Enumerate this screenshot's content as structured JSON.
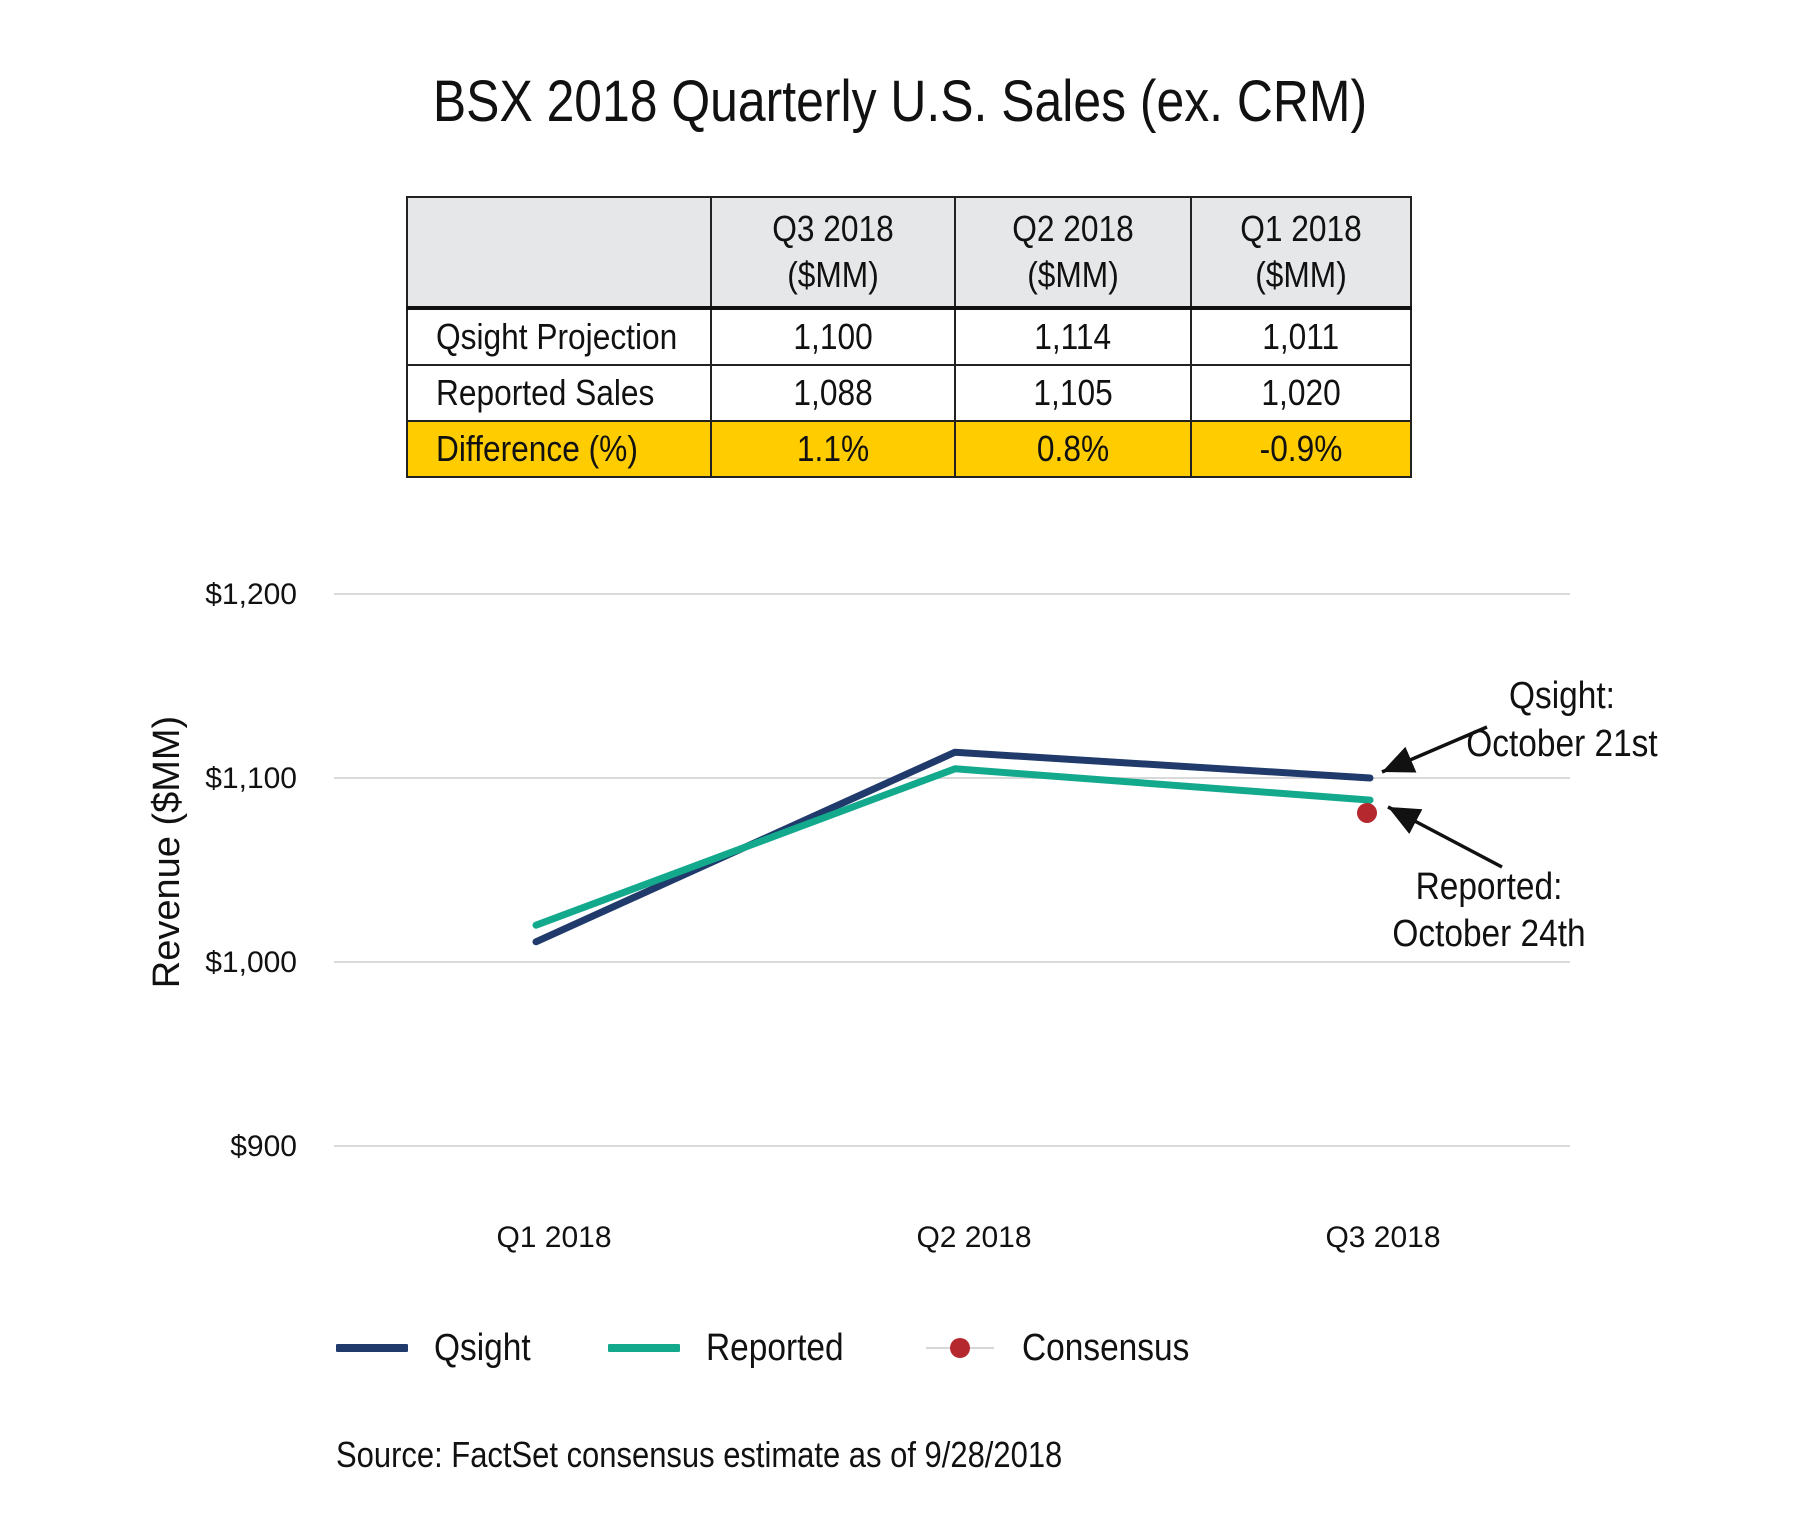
{
  "title": "BSX 2018 Quarterly U.S. Sales (ex. CRM)",
  "table": {
    "header": [
      "",
      "Q3 2018",
      "Q2 2018",
      "Q1 2018"
    ],
    "header_sub": [
      "",
      "($MM)",
      "($MM)",
      "($MM)"
    ],
    "rows": [
      {
        "label": "Qsight Projection",
        "values": [
          "1,100",
          "1,114",
          "1,011"
        ],
        "highlight": false
      },
      {
        "label": "Reported Sales",
        "values": [
          "1,088",
          "1,105",
          "1,020"
        ],
        "highlight": false
      },
      {
        "label": "Difference (%)",
        "values": [
          "1.1%",
          "0.8%",
          "-0.9%"
        ],
        "highlight": true
      }
    ],
    "highlight_color": "#ffcc00"
  },
  "chart_data": {
    "type": "line",
    "categories": [
      "Q1 2018",
      "Q2 2018",
      "Q3 2018"
    ],
    "series": [
      {
        "name": "Qsight",
        "values": [
          1011,
          1114,
          1100
        ],
        "color": "#1f3a6b"
      },
      {
        "name": "Reported",
        "values": [
          1020,
          1105,
          1088
        ],
        "color": "#13a98c"
      },
      {
        "name": "Consensus",
        "values": [
          null,
          null,
          1081
        ],
        "color": "#b5282e",
        "marker_only": true
      }
    ],
    "ylabel": "Revenue ($MM)",
    "xlabel": "",
    "ylim": [
      900,
      1200
    ],
    "yticks": [
      900,
      1000,
      1100,
      1200
    ],
    "ytick_labels": [
      "$900",
      "$1,000",
      "$1,100",
      "$1,200"
    ],
    "grid": true,
    "legend_position": "bottom",
    "annotations": [
      {
        "lines": [
          "Qsight:",
          "October 21st"
        ],
        "points_to": {
          "series": "Qsight",
          "category": "Q3 2018"
        }
      },
      {
        "lines": [
          "Reported:",
          "October 24th"
        ],
        "points_to": {
          "series": "Consensus",
          "category": "Q3 2018"
        }
      }
    ]
  },
  "source": "Source: FactSet consensus estimate as of 9/28/2018"
}
